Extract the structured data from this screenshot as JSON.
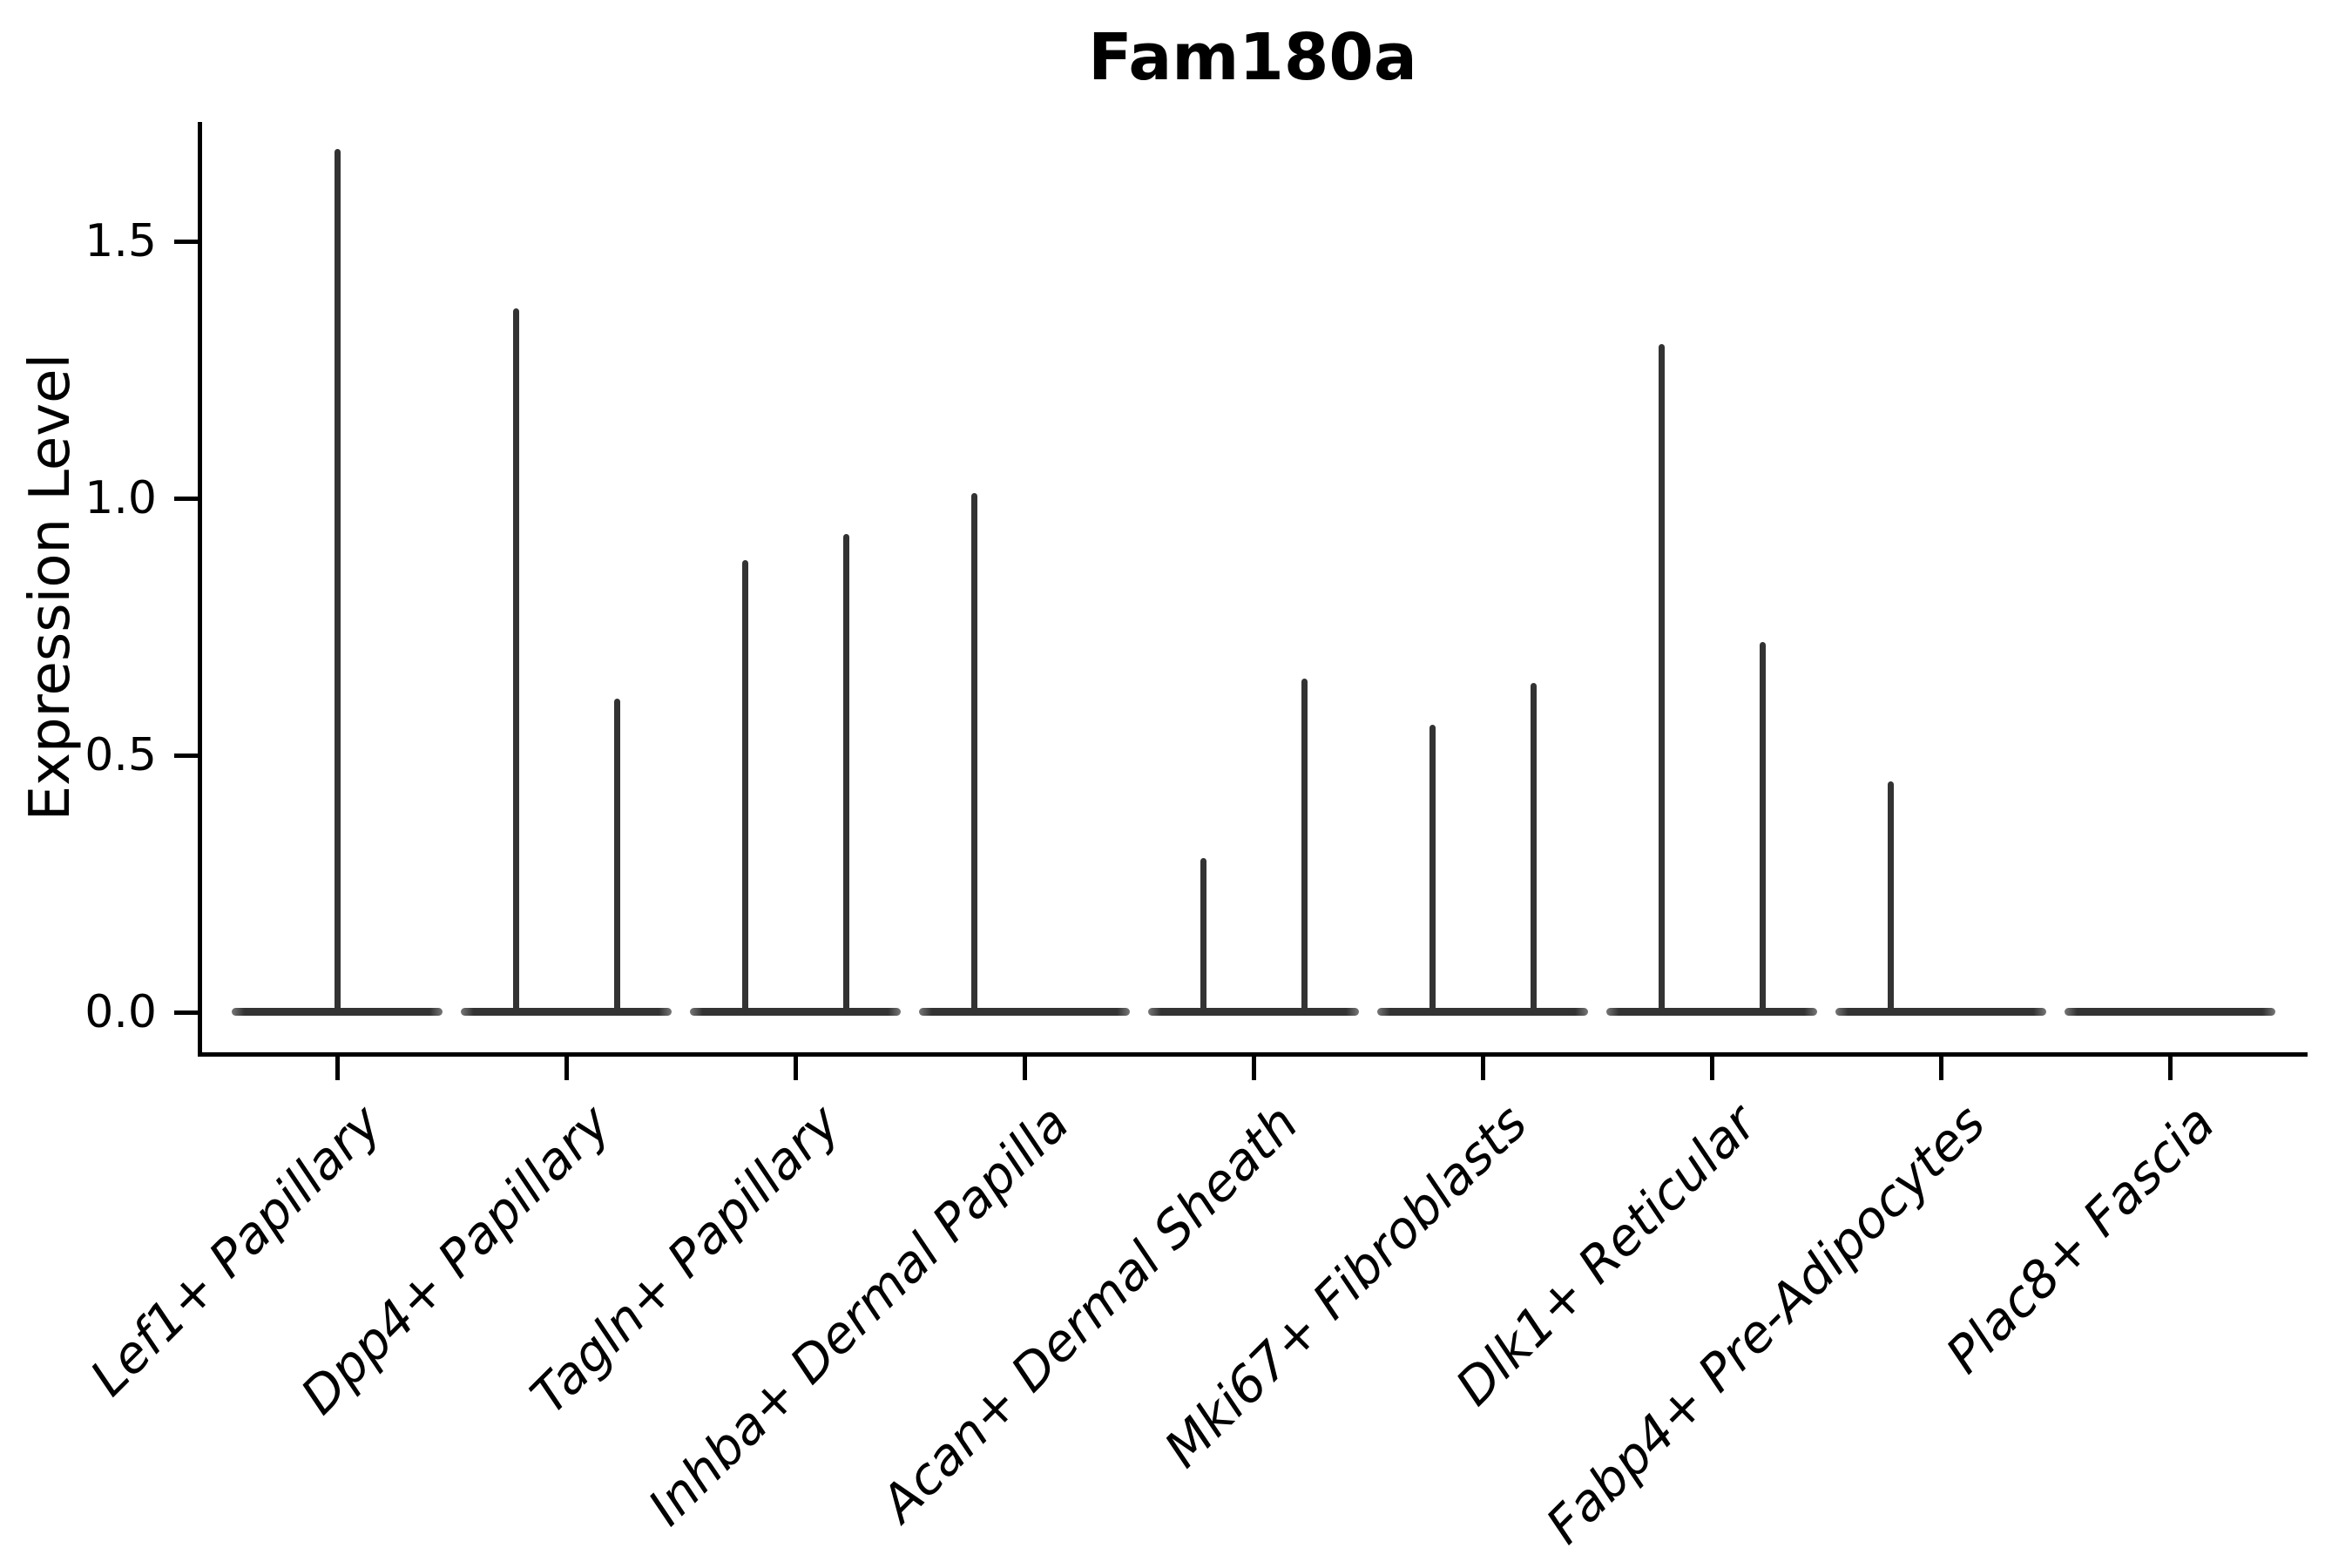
{
  "title": "Fam180a",
  "ylabel": "Expression Level",
  "colors": {
    "violin": "#333333",
    "axis": "#000000",
    "background": "#ffffff"
  },
  "chart_data": {
    "type": "violin",
    "title": "Fam180a",
    "xlabel": "",
    "ylabel": "Expression Level",
    "ylim": [
      -0.08,
      1.76
    ],
    "yticks": [
      0.0,
      0.5,
      1.0,
      1.5
    ],
    "ytick_labels": [
      "0.0",
      "0.5",
      "1.0",
      "1.5"
    ],
    "grid": false,
    "legend": false,
    "style": "sparse-expression-violins: each category drawn as a flat density bar at 0 with thin vertical density spikes up to the max expression value",
    "categories": [
      "Lef1+ Papillary",
      "Dpp4+ Papillary",
      "Tagln+ Papillary",
      "Inhba+ Dermal Papilla",
      "Acan+ Dermal Sheath",
      "Mki67+ Fibroblasts",
      "Dlk1+ Reticular",
      "Fabp4+ Pre-Adipocytes",
      "Plac8+ Fascia"
    ],
    "violins": [
      {
        "category": "Lef1+ Papillary",
        "baseline": 0.0,
        "spikes": [
          {
            "side": "center",
            "max": 1.68
          }
        ]
      },
      {
        "category": "Dpp4+ Papillary",
        "baseline": 0.0,
        "spikes": [
          {
            "side": "left",
            "max": 1.37
          },
          {
            "side": "right",
            "max": 0.61
          }
        ]
      },
      {
        "category": "Tagln+ Papillary",
        "baseline": 0.0,
        "spikes": [
          {
            "side": "left",
            "max": 0.88
          },
          {
            "side": "right",
            "max": 0.93
          }
        ]
      },
      {
        "category": "Inhba+ Dermal Papilla",
        "baseline": 0.0,
        "spikes": [
          {
            "side": "left",
            "max": 1.01
          }
        ]
      },
      {
        "category": "Acan+ Dermal Sheath",
        "baseline": 0.0,
        "spikes": [
          {
            "side": "left",
            "max": 0.3
          },
          {
            "side": "right",
            "max": 0.65
          }
        ]
      },
      {
        "category": "Mki67+ Fibroblasts",
        "baseline": 0.0,
        "spikes": [
          {
            "side": "left",
            "max": 0.56
          },
          {
            "side": "right",
            "max": 0.64
          }
        ]
      },
      {
        "category": "Dlk1+ Reticular",
        "baseline": 0.0,
        "spikes": [
          {
            "side": "left",
            "max": 1.3
          },
          {
            "side": "right",
            "max": 0.72
          }
        ]
      },
      {
        "category": "Fabp4+ Pre-Adipocytes",
        "baseline": 0.0,
        "spikes": [
          {
            "side": "left",
            "max": 0.45
          }
        ]
      },
      {
        "category": "Plac8+ Fascia",
        "baseline": 0.0,
        "spikes": []
      }
    ]
  }
}
